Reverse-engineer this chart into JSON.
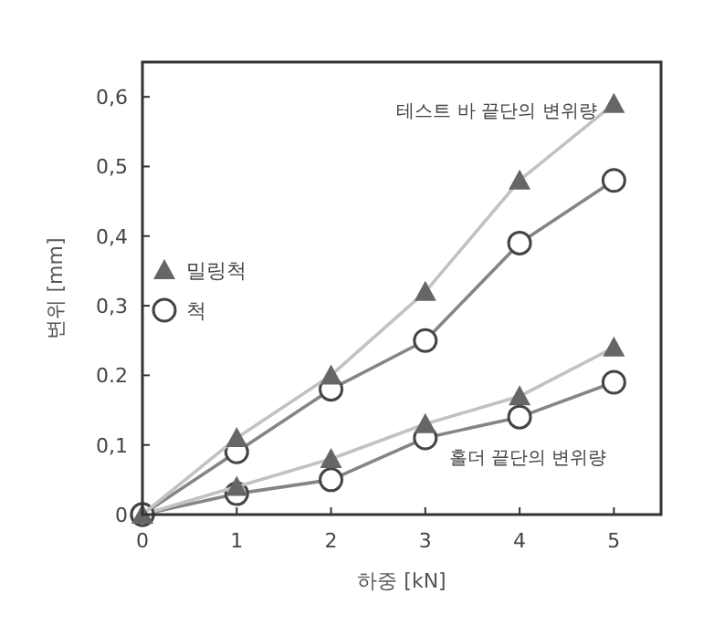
{
  "chart_data": {
    "type": "line",
    "xlabel": "하중 [kN]",
    "ylabel": "변위 [mm]",
    "x": [
      0,
      1,
      2,
      3,
      4,
      5
    ],
    "series": [
      {
        "name": "밀링척",
        "color": "#666666",
        "marker": "triangle",
        "values": [
          0,
          0.11,
          0.2,
          0.32,
          0.48,
          0.59
        ]
      },
      {
        "name": "척",
        "color": "#444444",
        "marker": "circle",
        "values": [
          0,
          0.09,
          0.18,
          0.25,
          0.39,
          0.48
        ]
      },
      {
        "color": "#666666",
        "marker": "triangle",
        "values": [
          0,
          0.04,
          0.08,
          0.13,
          0.17,
          0.24
        ]
      },
      {
        "color": "#444444",
        "marker": "circle",
        "values": [
          0,
          0.03,
          0.05,
          0.11,
          0.14,
          0.19
        ]
      }
    ],
    "annotations": [
      "테스트 바 끝단의 변위량",
      "홀더 끝단의 변위량"
    ],
    "xlim": [
      0,
      5.5
    ],
    "xticks": [
      0,
      1,
      2,
      3,
      4,
      5
    ],
    "ylim": [
      0,
      0.65
    ],
    "yticks": [
      0,
      {
        "value": 0.1,
        "label": "0,1"
      },
      0.2,
      {
        "value": 0.3,
        "label": "0,3"
      },
      {
        "value": 0.4,
        "label": "0,4"
      },
      {
        "value": 0.5,
        "label": "0,5"
      },
      {
        "value": 0.6,
        "label": "0,6"
      }
    ],
    "legend": "left",
    "grid": false
  }
}
